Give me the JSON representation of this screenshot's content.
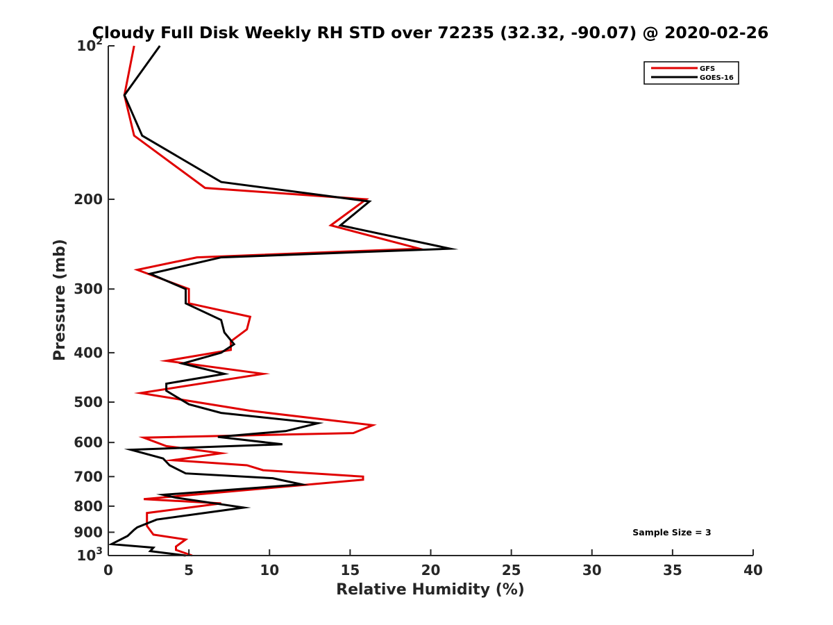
{
  "chart_data": {
    "type": "line",
    "title": "Cloudy Full Disk Weekly RH STD over 72235 (32.32, -90.07) @ 2020-02-26",
    "xlabel": "Relative Humidity (%)",
    "ylabel": "Pressure (mb)",
    "xlim": [
      0,
      40
    ],
    "ylim": [
      100,
      1000
    ],
    "yscale": "log",
    "y_reversed": true,
    "x_ticks": [
      0,
      5,
      10,
      15,
      20,
      25,
      30,
      35,
      40
    ],
    "x_tick_labels": [
      "0",
      "5",
      "10",
      "15",
      "20",
      "25",
      "30",
      "35",
      "40"
    ],
    "y_ticks": [
      100,
      200,
      300,
      400,
      500,
      600,
      700,
      800,
      900,
      1000
    ],
    "y_tick_labels": [
      {
        "base": "10",
        "exp": "2"
      },
      {
        "text": "200"
      },
      {
        "text": "300"
      },
      {
        "text": "400"
      },
      {
        "text": "500"
      },
      {
        "text": "600"
      },
      {
        "text": "700"
      },
      {
        "text": "800"
      },
      {
        "text": "900"
      },
      {
        "base": "10",
        "exp": "3"
      }
    ],
    "grid": false,
    "legend_position": "top-right",
    "annotation": "Sample Size = 3",
    "series": [
      {
        "name": "GFS",
        "color": "#e00000",
        "points": [
          [
            1.6,
            100
          ],
          [
            1.0,
            125
          ],
          [
            1.6,
            150
          ],
          [
            6.0,
            190
          ],
          [
            16.0,
            200
          ],
          [
            13.8,
            225
          ],
          [
            19.3,
            250
          ],
          [
            5.5,
            260
          ],
          [
            1.8,
            275
          ],
          [
            5.0,
            300
          ],
          [
            5.0,
            320
          ],
          [
            8.8,
            340
          ],
          [
            8.6,
            360
          ],
          [
            7.6,
            380
          ],
          [
            7.6,
            395
          ],
          [
            3.6,
            415
          ],
          [
            9.6,
            440
          ],
          [
            2.0,
            480
          ],
          [
            8.8,
            520
          ],
          [
            16.4,
            555
          ],
          [
            15.2,
            575
          ],
          [
            2.2,
            587
          ],
          [
            3.6,
            610
          ],
          [
            7.0,
            630
          ],
          [
            4.0,
            650
          ],
          [
            8.6,
            665
          ],
          [
            9.6,
            680
          ],
          [
            15.8,
            700
          ],
          [
            15.8,
            710
          ],
          [
            2.2,
            775
          ],
          [
            7.0,
            790
          ],
          [
            2.4,
            825
          ],
          [
            2.4,
            875
          ],
          [
            2.8,
            910
          ],
          [
            4.8,
            930
          ],
          [
            4.2,
            960
          ],
          [
            4.2,
            975
          ],
          [
            5.2,
            1000
          ]
        ]
      },
      {
        "name": "GOES-16",
        "color": "#000000",
        "points": [
          [
            3.2,
            100
          ],
          [
            1.0,
            125
          ],
          [
            2.1,
            150
          ],
          [
            7.0,
            185
          ],
          [
            16.2,
            202
          ],
          [
            14.4,
            225
          ],
          [
            21.2,
            250
          ],
          [
            7.0,
            260
          ],
          [
            2.6,
            280
          ],
          [
            4.8,
            300
          ],
          [
            4.8,
            320
          ],
          [
            7.0,
            345
          ],
          [
            7.2,
            365
          ],
          [
            7.8,
            385
          ],
          [
            7.0,
            400
          ],
          [
            4.6,
            420
          ],
          [
            7.2,
            440
          ],
          [
            3.6,
            460
          ],
          [
            3.6,
            475
          ],
          [
            5.0,
            505
          ],
          [
            7.0,
            525
          ],
          [
            13.0,
            550
          ],
          [
            11.0,
            570
          ],
          [
            6.8,
            585
          ],
          [
            10.8,
            605
          ],
          [
            1.4,
            620
          ],
          [
            3.4,
            645
          ],
          [
            3.8,
            665
          ],
          [
            4.8,
            690
          ],
          [
            10.2,
            705
          ],
          [
            12.0,
            725
          ],
          [
            3.4,
            760
          ],
          [
            4.2,
            770
          ],
          [
            8.4,
            805
          ],
          [
            3.0,
            850
          ],
          [
            1.8,
            880
          ],
          [
            1.6,
            890
          ],
          [
            1.2,
            915
          ],
          [
            0.2,
            950
          ],
          [
            2.8,
            965
          ],
          [
            2.6,
            980
          ],
          [
            4.8,
            1000
          ]
        ]
      }
    ]
  }
}
